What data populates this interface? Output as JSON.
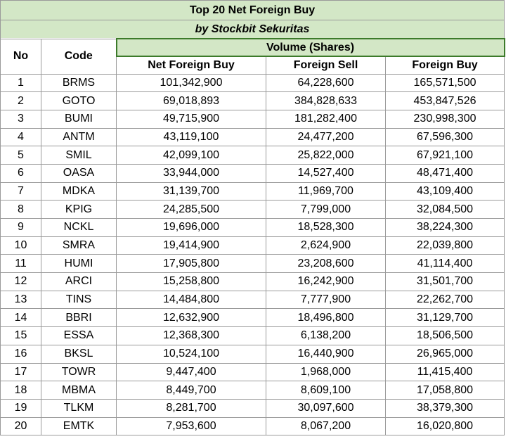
{
  "header": {
    "title": "Top 20 Net Foreign Buy",
    "subtitle": "by Stockbit Sekuritas"
  },
  "table": {
    "columns": [
      "No",
      "Code"
    ],
    "group": "Volume (Shares)",
    "subcolumns": [
      "Net Foreign Buy",
      "Foreign Sell",
      "Foreign Buy"
    ],
    "rows": [
      [
        1,
        "BRMS",
        "101,342,900",
        "64,228,600",
        "165,571,500"
      ],
      [
        2,
        "GOTO",
        "69,018,893",
        "384,828,633",
        "453,847,526"
      ],
      [
        3,
        "BUMI",
        "49,715,900",
        "181,282,400",
        "230,998,300"
      ],
      [
        4,
        "ANTM",
        "43,119,100",
        "24,477,200",
        "67,596,300"
      ],
      [
        5,
        "SMIL",
        "42,099,100",
        "25,822,000",
        "67,921,100"
      ],
      [
        6,
        "OASA",
        "33,944,000",
        "14,527,400",
        "48,471,400"
      ],
      [
        7,
        "MDKA",
        "31,139,700",
        "11,969,700",
        "43,109,400"
      ],
      [
        8,
        "KPIG",
        "24,285,500",
        "7,799,000",
        "32,084,500"
      ],
      [
        9,
        "NCKL",
        "19,696,000",
        "18,528,300",
        "38,224,300"
      ],
      [
        10,
        "SMRA",
        "19,414,900",
        "2,624,900",
        "22,039,800"
      ],
      [
        11,
        "HUMI",
        "17,905,800",
        "23,208,600",
        "41,114,400"
      ],
      [
        12,
        "ARCI",
        "15,258,800",
        "16,242,900",
        "31,501,700"
      ],
      [
        13,
        "TINS",
        "14,484,800",
        "7,777,900",
        "22,262,700"
      ],
      [
        14,
        "BBRI",
        "12,632,900",
        "18,496,800",
        "31,129,700"
      ],
      [
        15,
        "ESSA",
        "12,368,300",
        "6,138,200",
        "18,506,500"
      ],
      [
        16,
        "BKSL",
        "10,524,100",
        "16,440,900",
        "26,965,000"
      ],
      [
        17,
        "TOWR",
        "9,447,400",
        "1,968,000",
        "11,415,400"
      ],
      [
        18,
        "MBMA",
        "8,449,700",
        "8,609,100",
        "17,058,800"
      ],
      [
        19,
        "TLKM",
        "8,281,700",
        "30,097,600",
        "38,379,300"
      ],
      [
        20,
        "EMTK",
        "7,953,600",
        "8,067,200",
        "16,020,800"
      ]
    ]
  }
}
